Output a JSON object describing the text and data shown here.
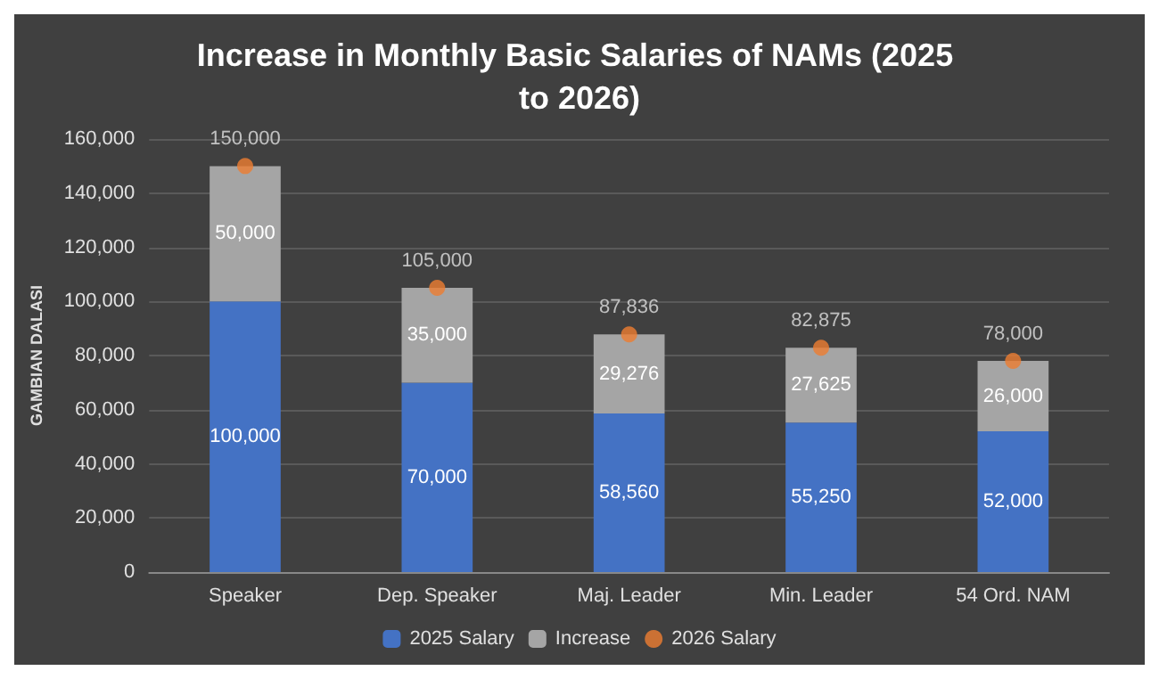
{
  "chart_data": {
    "type": "bar",
    "title": "Increase in Monthly Basic Salaries of NAMs (2025 to 2026)",
    "ylabel": "GAMBIAN DALASI",
    "categories": [
      "Speaker",
      "Dep. Speaker",
      "Maj. Leader",
      "Min. Leader",
      "54 Ord. NAM"
    ],
    "stacked": true,
    "grid": "y",
    "legend": "bottom",
    "ylim": [
      0,
      160000
    ],
    "yticks": [
      {
        "value": 0,
        "label": "0"
      },
      {
        "value": 20000,
        "label": "20,000"
      },
      {
        "value": 40000,
        "label": "40,000"
      },
      {
        "value": 60000,
        "label": "60,000"
      },
      {
        "value": 80000,
        "label": "80,000"
      },
      {
        "value": 100000,
        "label": "100,000"
      },
      {
        "value": 120000,
        "label": "120,000"
      },
      {
        "value": 140000,
        "label": "140,000"
      },
      {
        "value": 160000,
        "label": "160,000"
      }
    ],
    "series": [
      {
        "name": "2025 Salary",
        "color": "#4472c4",
        "values": [
          100000,
          70000,
          58560,
          55250,
          52000
        ],
        "value_labels": [
          "100,000",
          "70,000",
          "58,560",
          "55,250",
          "52,000"
        ]
      },
      {
        "name": "Increase",
        "color": "#a5a5a5",
        "values": [
          50000,
          35000,
          29276,
          27625,
          26000
        ],
        "value_labels": [
          "50,000",
          "35,000",
          "29,276",
          "27,625",
          "26,000"
        ]
      },
      {
        "name": "2026 Salary",
        "type": "scatter",
        "color": "#ed7d31",
        "x": [
          "Speaker",
          "Dep. Speaker",
          "Maj. Leader",
          "Min. Leader",
          "54 Ord. NAM"
        ],
        "marker": "circle",
        "values": [
          150000,
          105000,
          87836,
          82875,
          78000
        ],
        "value_labels": [
          "150,000",
          "105,000",
          "87,836",
          "82,875",
          "78,000"
        ]
      }
    ]
  }
}
